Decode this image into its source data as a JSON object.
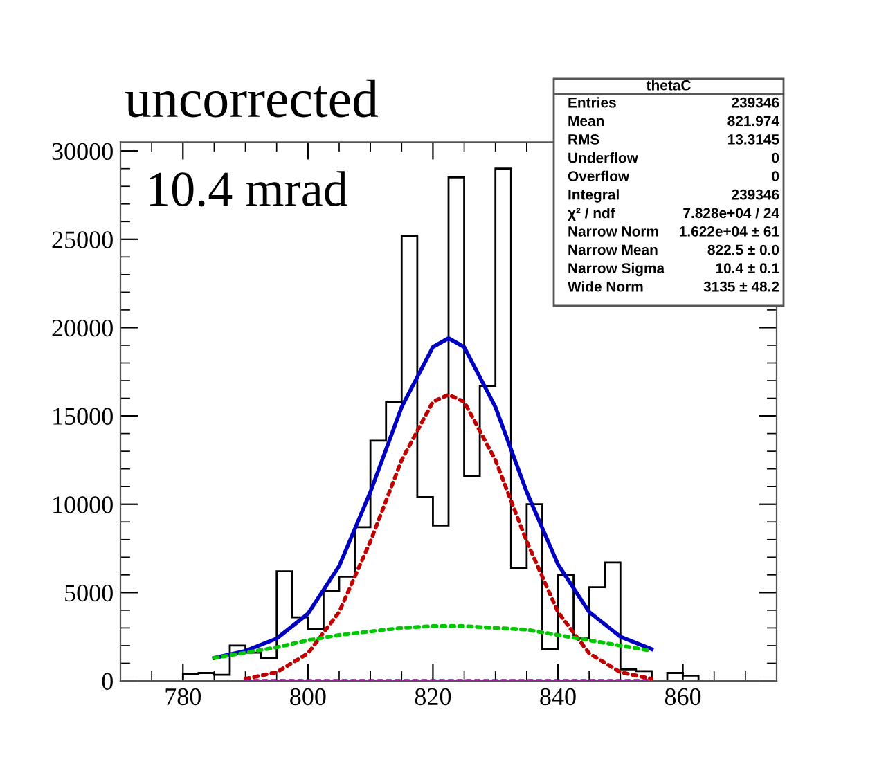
{
  "chart_data": {
    "type": "histogram",
    "title": "uncorrected",
    "bins": [
      780,
      782.5,
      785,
      787.5,
      790,
      792.5,
      795,
      797.5,
      800,
      802.5,
      805,
      807.5,
      810,
      812.5,
      815,
      817.5,
      820,
      822.5,
      825,
      827.5,
      830,
      832.5,
      835,
      837.5,
      840,
      842.5,
      845,
      847.5,
      850,
      852.5,
      855,
      857.5,
      860,
      862.5
    ],
    "values": [
      400,
      450,
      350,
      2000,
      1600,
      1300,
      6200,
      3600,
      2950,
      5100,
      5900,
      8700,
      13600,
      15800,
      25200,
      10400,
      8800,
      28500,
      11600,
      16700,
      29000,
      6400,
      10000,
      1800,
      6000,
      2400,
      5300,
      6700,
      650,
      550,
      0,
      450,
      300
    ],
    "color": "#000000",
    "series": [
      {
        "type": "line",
        "color": "#0000c0",
        "line_style": "solid",
        "x": [
          785,
          790,
          795,
          800,
          805,
          810,
          815,
          820,
          822.5,
          825,
          830,
          835,
          840,
          845,
          850,
          855
        ],
        "values": [
          1300,
          1700,
          2400,
          3800,
          6500,
          10700,
          15500,
          18900,
          19400,
          18900,
          15500,
          10700,
          6600,
          3900,
          2500,
          1800
        ]
      },
      {
        "type": "line",
        "color": "#c00000",
        "line_style": "dotted",
        "x": [
          790,
          795,
          800,
          805,
          810,
          815,
          820,
          822.5,
          825,
          830,
          835,
          840,
          845,
          850,
          855
        ],
        "values": [
          120,
          490,
          1560,
          3900,
          7900,
          12500,
          15800,
          16200,
          15800,
          12500,
          7900,
          3900,
          1560,
          490,
          120
        ]
      },
      {
        "type": "line",
        "color": "#00c800",
        "line_style": "dotted",
        "x": [
          785,
          790,
          795,
          800,
          805,
          810,
          815,
          820,
          822.5,
          825,
          830,
          835,
          840,
          845,
          850,
          855
        ],
        "values": [
          1300,
          1600,
          1900,
          2300,
          2600,
          2800,
          3000,
          3100,
          3100,
          3100,
          3000,
          2900,
          2600,
          2300,
          2000,
          1700
        ]
      },
      {
        "type": "line",
        "color": "#990099",
        "line_style": "dotted",
        "x": [
          790,
          855
        ],
        "values": [
          0,
          0
        ]
      }
    ],
    "xlim": [
      770,
      875
    ],
    "ylim": [
      0,
      30500
    ],
    "xticks": [
      780,
      800,
      820,
      840,
      860
    ],
    "yticks": [
      0,
      5000,
      10000,
      15000,
      20000,
      25000,
      30000
    ],
    "grid": false,
    "legend": false,
    "annotations": [
      "10.4 mrad",
      "thetaC",
      "Entries",
      "239346",
      "Mean",
      "821.974",
      "RMS",
      "13.3145",
      "Underflow",
      "0",
      "Overflow",
      "0",
      "Integral",
      "239346",
      "χ² / ndf",
      "7.828e+04 / 24",
      "Narrow Norm",
      "1.622e+04 ± 61",
      "Narrow Mean",
      "822.5 ± 0.0",
      "Narrow Sigma",
      "10.4 ± 0.1",
      "Wide Norm",
      "3135 ± 48.2"
    ]
  }
}
